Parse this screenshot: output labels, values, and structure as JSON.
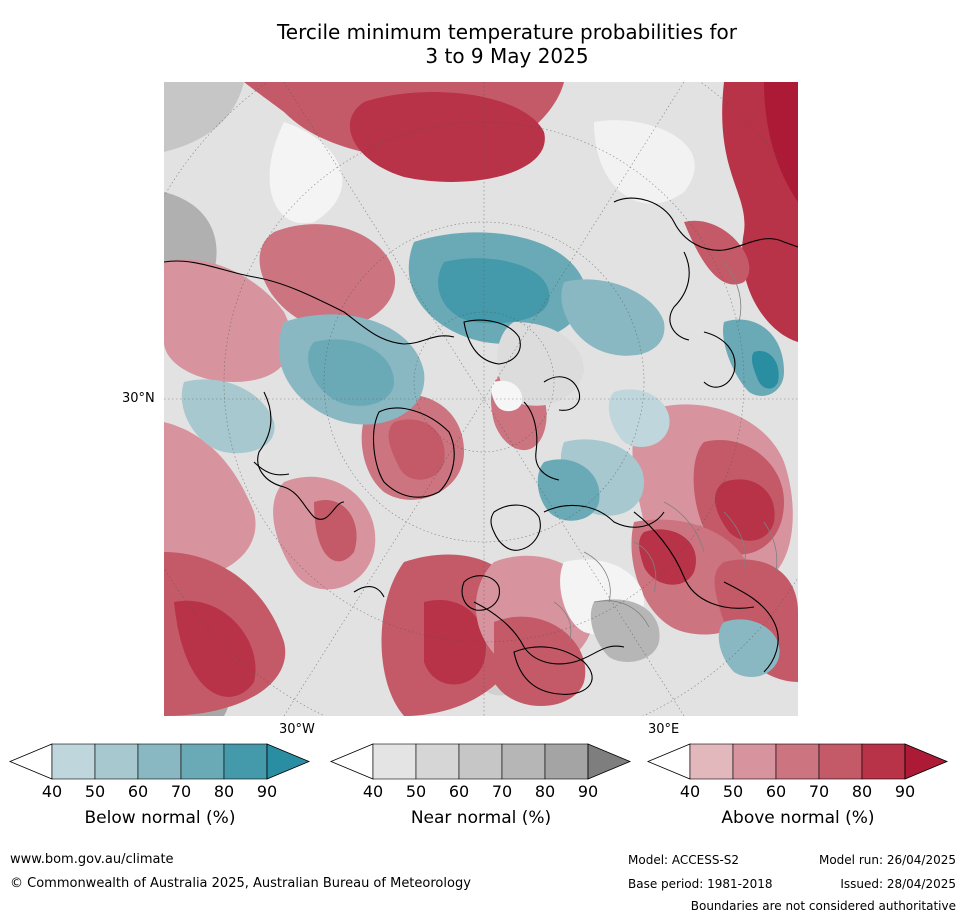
{
  "title_line1": "Tercile minimum temperature probabilities for",
  "title_line2": "3 to 9 May 2025",
  "map": {
    "lat_label": "30°N",
    "lon_label_west": "30°W",
    "lon_label_east": "30°E"
  },
  "colorbars": [
    {
      "title": "Below normal (%)",
      "ticks": [
        "40",
        "50",
        "60",
        "70",
        "80",
        "90"
      ],
      "colors": [
        "#ffffff",
        "#bed6dc",
        "#a6c8ce",
        "#8ab8c2",
        "#6aaab6",
        "#4499aa",
        "#2a8ea2"
      ]
    },
    {
      "title": "Near normal (%)",
      "ticks": [
        "40",
        "50",
        "60",
        "70",
        "80",
        "90"
      ],
      "colors": [
        "#ffffff",
        "#e4e4e4",
        "#d6d6d6",
        "#c6c6c6",
        "#b6b6b6",
        "#a4a4a4",
        "#7e7e7e"
      ]
    },
    {
      "title": "Above normal (%)",
      "ticks": [
        "40",
        "50",
        "60",
        "70",
        "80",
        "90"
      ],
      "colors": [
        "#ffffff",
        "#e2b8bd",
        "#d8949e",
        "#cc7480",
        "#c45a68",
        "#b83248",
        "#ac1a36"
      ]
    }
  ],
  "footer": {
    "website": "www.bom.gov.au/climate",
    "copyright": "© Commonwealth of Australia 2025, Australian Bureau of Meteorology",
    "model": "Model: ACCESS-S2",
    "base_period": "Base period: 1981-2018",
    "model_run": "Model run: 26/04/2025",
    "issued": "Issued: 28/04/2025",
    "disclaimer": "Boundaries are not considered authoritative"
  }
}
